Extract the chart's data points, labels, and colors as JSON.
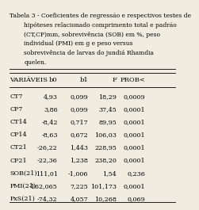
{
  "title_line1": "Tabela 3 - Coeficientes de regressão e respectivos testes de",
  "title_line2": "hipóteses relacionado comprimento total e padrão",
  "title_line3": "(CT,CP)mm, sobrevivência (SOB) em %, peso",
  "title_line4": "individual (PMI) em g e peso versus",
  "title_line5": "sobrevivência de larvas do jundiá Rhamdia",
  "title_line6": "quelen.",
  "col_headers": [
    "VARIÁVEIS",
    "b0",
    "b1",
    "F",
    "PROB<"
  ],
  "rows": [
    [
      "CT7",
      "4,93",
      "0,099",
      "18,29",
      "0,0009"
    ],
    [
      "CP7",
      "3,86",
      "0,099",
      "37,45",
      "0,0001"
    ],
    [
      "CT14",
      "-8,42",
      "0,717",
      "89,95",
      "0,0001"
    ],
    [
      "CP14",
      "-8,63",
      "0,672",
      "106,03",
      "0,0001"
    ],
    [
      "CT21",
      "-26,22",
      "1,443",
      "228,95",
      "0,0001"
    ],
    [
      "CP21",
      "-22,36",
      "1,238",
      "238,20",
      "0,0001"
    ],
    [
      "SOB(21)",
      "111,01",
      "-1,006",
      "1,54",
      "0,236"
    ],
    [
      "PMI(21)",
      "-162,065",
      "7,225",
      "101,173",
      "0,0001"
    ],
    [
      "PxS(21)",
      "-74,32",
      "4,057",
      "10,268",
      "0,069"
    ]
  ],
  "bg_color": "#f0ede0",
  "text_color": "#000000",
  "font_size_title": 5.5,
  "font_size_header": 6.0,
  "font_size_data": 5.8
}
